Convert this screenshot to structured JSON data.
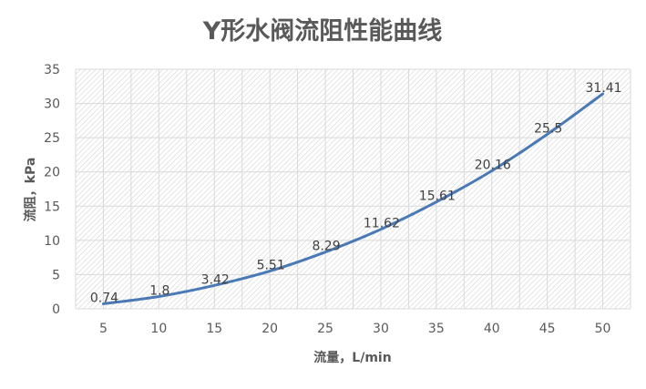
{
  "chart_data": {
    "type": "line",
    "title": "Y形水阀流阻性能曲线",
    "xlabel": "流量，L/min",
    "ylabel": "流阻，kPa",
    "categories": [
      5,
      10,
      15,
      20,
      25,
      30,
      35,
      40,
      45,
      50
    ],
    "series": [
      {
        "values": [
          0.74,
          1.8,
          3.42,
          5.51,
          8.29,
          11.62,
          15.61,
          20.16,
          25.5,
          31.41
        ],
        "color": "#4a7ab5"
      }
    ],
    "data_labels": [
      "0.74",
      "1.8",
      "3.42",
      "5.51",
      "8.29",
      "11.62",
      "15.61",
      "20.16",
      "25.5",
      "31.41"
    ],
    "ylim": [
      0,
      35
    ],
    "yticks": [
      0,
      5,
      10,
      15,
      20,
      25,
      30,
      35
    ],
    "grid": true,
    "legend": "none",
    "background": "hatched"
  }
}
